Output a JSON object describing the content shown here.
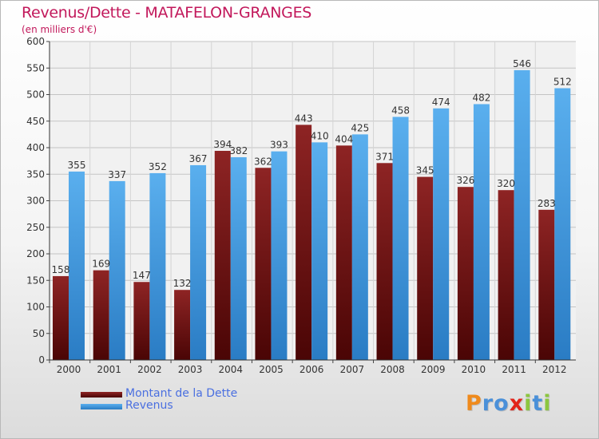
{
  "title": "Revenus/Dette - MATAFELON-GRANGES",
  "subtitle": "(en milliers d'€)",
  "legend": {
    "debt_label": "Montant de la Dette",
    "revenue_label": "Revenus"
  },
  "logo": {
    "letters": [
      "P",
      "r",
      "o",
      "x",
      "i",
      "t",
      "i"
    ],
    "colors": [
      "#ef8a1c",
      "#4a90d9",
      "#4a90d9",
      "#e2231a",
      "#8cc63f",
      "#4a90d9",
      "#8cc63f"
    ]
  },
  "chart_data": {
    "type": "bar",
    "categories": [
      "2000",
      "2001",
      "2002",
      "2003",
      "2004",
      "2005",
      "2006",
      "2007",
      "2008",
      "2009",
      "2010",
      "2011",
      "2012"
    ],
    "series": [
      {
        "name": "Montant de la Dette",
        "color": "#7a1212",
        "values": [
          158,
          169,
          147,
          132,
          394,
          362,
          443,
          404,
          371,
          345,
          326,
          320,
          283
        ]
      },
      {
        "name": "Revenus",
        "color": "#4ea6e6",
        "values": [
          355,
          337,
          352,
          367,
          382,
          393,
          410,
          425,
          458,
          474,
          482,
          546,
          512
        ]
      }
    ],
    "ylim": [
      0,
      600
    ],
    "yticks": [
      0,
      50,
      100,
      150,
      200,
      250,
      300,
      350,
      400,
      450,
      500,
      550,
      600
    ],
    "grid": true,
    "legend_position": "bottom-left"
  }
}
